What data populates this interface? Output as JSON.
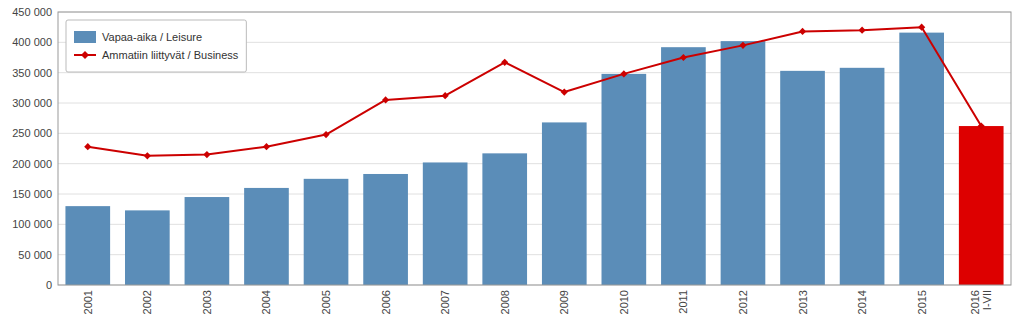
{
  "chart_data": {
    "type": "bar",
    "categories": [
      "2001",
      "2002",
      "2003",
      "2004",
      "2005",
      "2006",
      "2007",
      "2008",
      "2009",
      "2010",
      "2011",
      "2012",
      "2013",
      "2014",
      "2015",
      "2016\nI-VII"
    ],
    "series": [
      {
        "name": "Vapaa-aika / Leisure",
        "type": "bar",
        "color": "#5b8db8",
        "colors": [
          "#5b8db8",
          "#5b8db8",
          "#5b8db8",
          "#5b8db8",
          "#5b8db8",
          "#5b8db8",
          "#5b8db8",
          "#5b8db8",
          "#5b8db8",
          "#5b8db8",
          "#5b8db8",
          "#5b8db8",
          "#5b8db8",
          "#5b8db8",
          "#5b8db8",
          "#dd0000"
        ],
        "values": [
          130000,
          123000,
          145000,
          160000,
          175000,
          183000,
          202000,
          217000,
          268000,
          348000,
          392000,
          402000,
          353000,
          358000,
          416000,
          262000
        ]
      },
      {
        "name": "Ammatiin liittyvät / Business",
        "type": "line",
        "color": "#cc0000",
        "marker": "diamond",
        "values": [
          228000,
          213000,
          215000,
          228000,
          248000,
          305000,
          312000,
          367000,
          318000,
          348000,
          375000,
          395000,
          418000,
          420000,
          425000,
          262000
        ]
      }
    ],
    "ylim": [
      0,
      450000
    ],
    "yticks": [
      0,
      {
        "value": 50000,
        "label": "50 000"
      },
      {
        "value": 100000,
        "label": "100 000"
      },
      {
        "value": 150000,
        "label": "150 000"
      },
      {
        "value": 200000,
        "label": "200 000"
      },
      {
        "value": 250000,
        "label": "250 000"
      },
      {
        "value": 300000,
        "label": "300 000"
      },
      {
        "value": 350000,
        "label": "350 000"
      },
      {
        "value": 400000,
        "label": "400 000"
      },
      {
        "value": 450000,
        "label": "450 000"
      }
    ],
    "grid": true,
    "legend": "upper left"
  }
}
